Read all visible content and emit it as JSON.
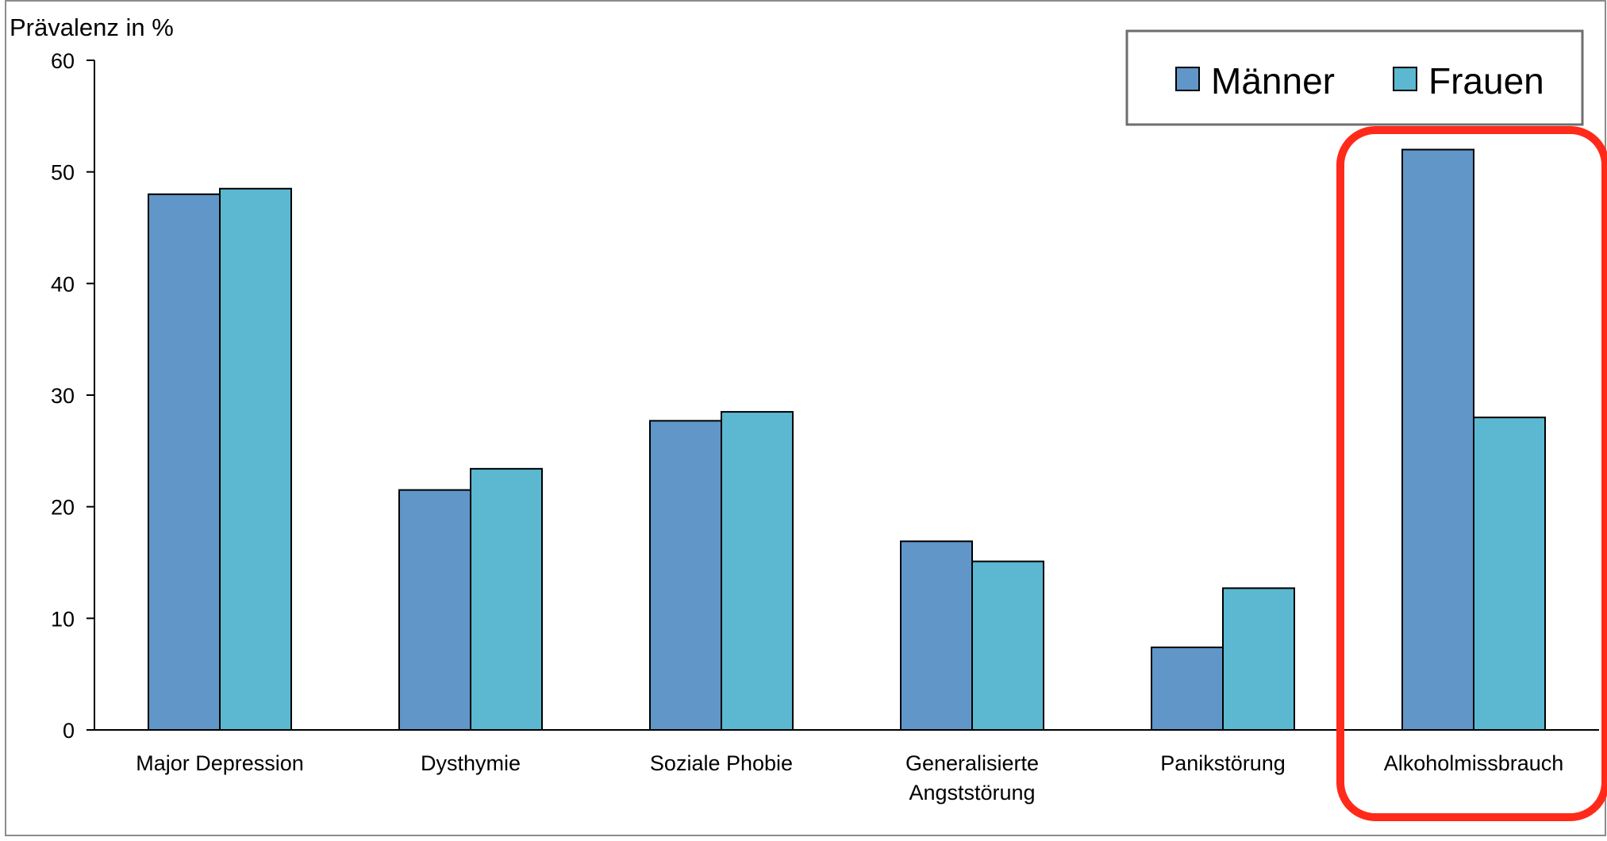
{
  "chart_data": {
    "type": "bar",
    "ylabel": "Prävalenz in %",
    "ylim": [
      0,
      60
    ],
    "yticks": [
      0,
      10,
      20,
      30,
      40,
      50,
      60
    ],
    "categories": [
      [
        "Major Depression"
      ],
      [
        "Dysthymie"
      ],
      [
        "Soziale Phobie"
      ],
      [
        "Generalisierte",
        "Angststörung"
      ],
      [
        "Panikstörung"
      ],
      [
        "Alkoholmissbrauch"
      ]
    ],
    "series": [
      {
        "name": "Männer",
        "color": "#6096c8",
        "values": [
          48,
          21.5,
          27.7,
          16.9,
          7.4,
          52
        ]
      },
      {
        "name": "Frauen",
        "color": "#5bb8d0",
        "values": [
          48.5,
          23.4,
          28.5,
          15.1,
          12.7,
          28
        ]
      }
    ],
    "legend_position": "top-right",
    "highlight": {
      "category_index": 5,
      "color": "#ff2a1a"
    },
    "grid": false
  }
}
